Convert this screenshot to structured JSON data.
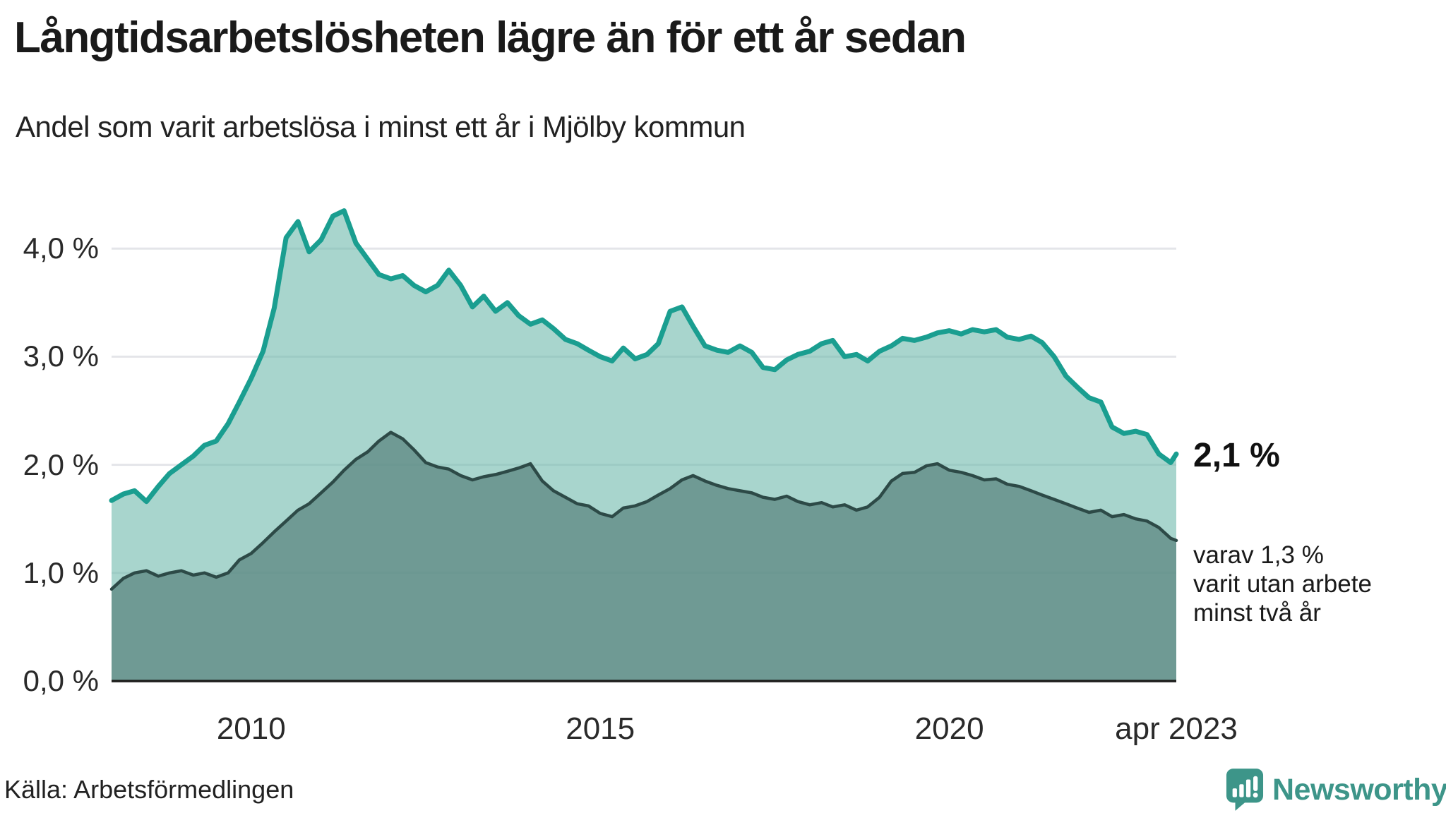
{
  "header": {
    "title": "Långtidsarbetslösheten lägre än för ett år sedan",
    "subtitle": "Andel som varit arbetslösa i minst ett år i Mjölby kommun"
  },
  "chart_data": {
    "type": "area",
    "title": "Långtidsarbetslösheten lägre än för ett år sedan",
    "subtitle": "Andel som varit arbetslösa i minst ett år i Mjölby kommun",
    "x_unit": "decimal_year_monthly",
    "xlim": [
      2008.0,
      2023.25
    ],
    "ylim": [
      0.0,
      4.45
    ],
    "grid": "horizontal",
    "legend": "none",
    "x": [
      2008.0,
      2008.17,
      2008.33,
      2008.5,
      2008.67,
      2008.83,
      2009.0,
      2009.17,
      2009.33,
      2009.5,
      2009.67,
      2009.83,
      2010.0,
      2010.17,
      2010.33,
      2010.5,
      2010.67,
      2010.83,
      2011.0,
      2011.17,
      2011.33,
      2011.5,
      2011.67,
      2011.83,
      2012.0,
      2012.17,
      2012.33,
      2012.5,
      2012.67,
      2012.83,
      2013.0,
      2013.17,
      2013.33,
      2013.5,
      2013.67,
      2013.83,
      2014.0,
      2014.17,
      2014.33,
      2014.5,
      2014.67,
      2014.83,
      2015.0,
      2015.17,
      2015.33,
      2015.5,
      2015.67,
      2015.83,
      2016.0,
      2016.17,
      2016.33,
      2016.5,
      2016.67,
      2016.83,
      2017.0,
      2017.17,
      2017.33,
      2017.5,
      2017.67,
      2017.83,
      2018.0,
      2018.17,
      2018.33,
      2018.5,
      2018.67,
      2018.83,
      2019.0,
      2019.17,
      2019.33,
      2019.5,
      2019.67,
      2019.83,
      2020.0,
      2020.17,
      2020.33,
      2020.5,
      2020.67,
      2020.83,
      2021.0,
      2021.17,
      2021.33,
      2021.5,
      2021.67,
      2021.83,
      2022.0,
      2022.17,
      2022.33,
      2022.5,
      2022.67,
      2022.83,
      2023.0,
      2023.17,
      2023.25
    ],
    "series": [
      {
        "name": "Andel arbetslösa minst ett år",
        "line_color": "#1a9e90",
        "fill_color": "rgba(110,185,172,0.60)",
        "end_value": 2.1,
        "values": [
          1.67,
          1.73,
          1.76,
          1.66,
          1.8,
          1.92,
          2.0,
          2.08,
          2.18,
          2.22,
          2.38,
          2.58,
          2.8,
          3.05,
          3.45,
          4.1,
          4.25,
          3.97,
          4.08,
          4.3,
          4.35,
          4.05,
          3.9,
          3.76,
          3.72,
          3.75,
          3.66,
          3.6,
          3.66,
          3.8,
          3.66,
          3.46,
          3.56,
          3.42,
          3.5,
          3.38,
          3.3,
          3.34,
          3.26,
          3.16,
          3.12,
          3.06,
          3.0,
          2.96,
          3.08,
          2.98,
          3.02,
          3.12,
          3.42,
          3.46,
          3.28,
          3.1,
          3.06,
          3.04,
          3.1,
          3.04,
          2.9,
          2.88,
          2.97,
          3.02,
          3.05,
          3.12,
          3.15,
          3.0,
          3.02,
          2.96,
          3.05,
          3.1,
          3.17,
          3.15,
          3.18,
          3.22,
          3.24,
          3.21,
          3.25,
          3.23,
          3.25,
          3.18,
          3.16,
          3.19,
          3.13,
          3.0,
          2.82,
          2.72,
          2.62,
          2.58,
          2.35,
          2.29,
          2.31,
          2.28,
          2.1,
          2.02,
          2.1
        ]
      },
      {
        "name": "Andel utan arbete minst två år",
        "line_color": "#2d4a47",
        "fill_color": "rgba(89,132,126,0.72)",
        "end_value": 1.3,
        "values": [
          0.85,
          0.95,
          1.0,
          1.02,
          0.97,
          1.0,
          1.02,
          0.98,
          1.0,
          0.96,
          1.0,
          1.12,
          1.18,
          1.28,
          1.38,
          1.48,
          1.58,
          1.64,
          1.74,
          1.84,
          1.95,
          2.05,
          2.12,
          2.22,
          2.3,
          2.24,
          2.14,
          2.02,
          1.98,
          1.96,
          1.9,
          1.86,
          1.89,
          1.91,
          1.94,
          1.97,
          2.01,
          1.85,
          1.76,
          1.7,
          1.64,
          1.62,
          1.55,
          1.52,
          1.6,
          1.62,
          1.66,
          1.72,
          1.78,
          1.86,
          1.9,
          1.85,
          1.81,
          1.78,
          1.76,
          1.74,
          1.7,
          1.68,
          1.71,
          1.66,
          1.63,
          1.65,
          1.61,
          1.63,
          1.58,
          1.61,
          1.7,
          1.85,
          1.92,
          1.93,
          1.99,
          2.01,
          1.95,
          1.93,
          1.9,
          1.86,
          1.87,
          1.82,
          1.8,
          1.76,
          1.72,
          1.68,
          1.64,
          1.6,
          1.56,
          1.58,
          1.52,
          1.54,
          1.5,
          1.48,
          1.42,
          1.32,
          1.3
        ]
      }
    ],
    "yticks": [
      {
        "value": 0.0,
        "label": "0,0 %"
      },
      {
        "value": 1.0,
        "label": "1,0 %"
      },
      {
        "value": 2.0,
        "label": "2,0 %"
      },
      {
        "value": 3.0,
        "label": "3,0 %"
      },
      {
        "value": 4.0,
        "label": "4,0 %"
      }
    ],
    "xticks": [
      {
        "value": 2010.0,
        "label": "2010"
      },
      {
        "value": 2015.0,
        "label": "2015"
      },
      {
        "value": 2020.0,
        "label": "2020"
      },
      {
        "value": 2023.25,
        "label": "apr 2023"
      }
    ],
    "annotations": {
      "end_label": "2,1 %",
      "note_lines": [
        "varav 1,3 %",
        "varit utan arbete",
        "minst två år"
      ]
    },
    "colors": {
      "accent": "#1a9e90",
      "dark_series": "#2d4a47",
      "gridline": "#e4e5e9",
      "axis_line": "#1d1d1b",
      "brand_teal": "#3d9589"
    }
  },
  "footer": {
    "source": "Källa: Arbetsförmedlingen",
    "brand": "Newsworthy"
  }
}
